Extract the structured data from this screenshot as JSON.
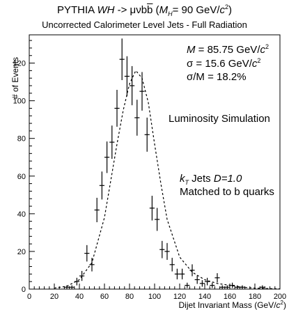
{
  "figure": {
    "title": "PYTHIA WH -> μνbb̄ (MH= 90 GeV/c²)",
    "subtitle": "Uncorrected Calorimeter Level Jets - Full Radiation",
    "annotations": {
      "mass": "M= 85.75 GeV/c²",
      "sigma": "σ = 15.6 GeV/c²",
      "ratio": "σ/M = 18.2%",
      "lumi": "Luminosity Simulation",
      "jets": "kT Jets D=1.0",
      "matched": "Matched to b quarks"
    }
  },
  "chart_data": {
    "type": "scatter",
    "title": "PYTHIA WH -> μνbb̄ (MH= 90 GeV/c²)",
    "subtitle": "Uncorrected Calorimeter Level Jets - Full Radiation",
    "xlabel": "Dijet Invariant Mass (GeV/c²)",
    "ylabel": "# of Events",
    "xlim": [
      0,
      200
    ],
    "ylim": [
      0,
      135
    ],
    "x_ticks": [
      0,
      20,
      40,
      60,
      80,
      100,
      120,
      140,
      160,
      180,
      200
    ],
    "y_ticks": [
      0,
      20,
      40,
      60,
      80,
      100,
      120
    ],
    "grid": false,
    "bin_width": 4,
    "series": [
      {
        "style": "histogram points with error bars",
        "x": [
          30,
          34,
          38,
          42,
          46,
          50,
          54,
          58,
          62,
          66,
          70,
          74,
          78,
          82,
          86,
          90,
          94,
          98,
          102,
          106,
          110,
          114,
          118,
          122,
          126,
          130,
          134,
          138,
          142,
          146,
          150,
          154,
          158,
          162,
          166,
          170,
          174,
          178,
          182,
          186,
          190
        ],
        "y": [
          1,
          1,
          4,
          7,
          19,
          13,
          42,
          55,
          70,
          78,
          96,
          122,
          113,
          108,
          91,
          105,
          82,
          43,
          37,
          21,
          20,
          13,
          8,
          8,
          2,
          10,
          5,
          3,
          4,
          2,
          6,
          1,
          1,
          2,
          1,
          1,
          0,
          0,
          0,
          1,
          0
        ]
      },
      {
        "style": "dashed fit curve",
        "fit": "gaussian core with tails",
        "mean": 85.75,
        "sigma": 15.6,
        "peak": 116,
        "x": [
          20,
          30,
          40,
          50,
          60,
          70,
          75,
          80,
          85,
          90,
          95,
          100,
          105,
          110,
          120,
          130,
          140,
          150,
          160,
          170,
          180,
          190,
          200
        ],
        "y": [
          0.5,
          1.5,
          5,
          14,
          38,
          77,
          95,
          109,
          116,
          112,
          99,
          77,
          56,
          37,
          17,
          9,
          5,
          3,
          2,
          1,
          0.5,
          0.3,
          0.1
        ]
      }
    ]
  }
}
